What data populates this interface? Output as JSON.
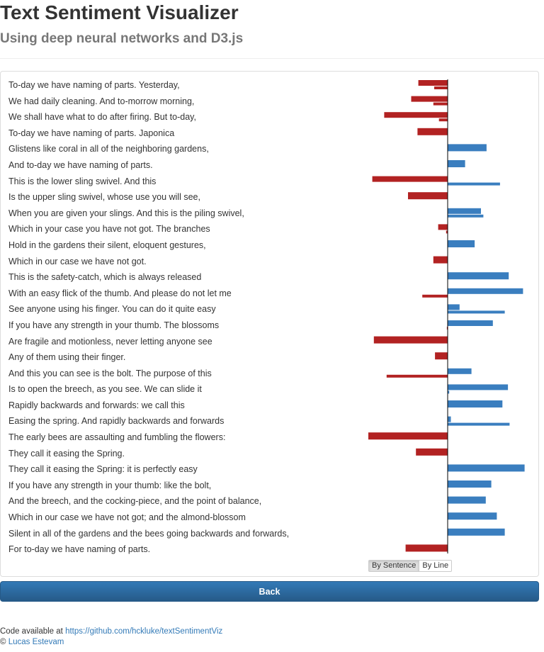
{
  "header": {
    "title": "Text Sentiment Visualizer",
    "subtitle": "Using deep neural networks and D3.js"
  },
  "chart_data": {
    "type": "bar",
    "orientation": "horizontal",
    "title": "",
    "xlabel": "",
    "ylabel": "",
    "xlim": [
      -1,
      1
    ],
    "grid": false,
    "colors": {
      "positive": "#3a7ebf",
      "negative": "#b22222",
      "axis": "#000000"
    },
    "lines": [
      {
        "text": "To-day we have naming of parts. Yesterday,",
        "bars": [
          -0.37,
          -0.17
        ]
      },
      {
        "text": "We had daily cleaning. And to-morrow morning,",
        "bars": [
          -0.46,
          -0.18
        ]
      },
      {
        "text": "We shall have what to do after firing. But to-day,",
        "bars": [
          -0.8,
          -0.11
        ]
      },
      {
        "text": "To-day we have naming of parts. Japonica",
        "bars": [
          -0.38
        ]
      },
      {
        "text": "Glistens like coral in all of the neighboring gardens,",
        "bars": [
          0.49
        ]
      },
      {
        "text": "And to-day we have naming of parts.",
        "bars": [
          0.22
        ]
      },
      {
        "text": "This is the lower sling swivel. And this",
        "bars": [
          -0.95,
          0.66
        ]
      },
      {
        "text": "Is the upper sling swivel, whose use you will see,",
        "bars": [
          -0.5
        ]
      },
      {
        "text": "When you are given your slings. And this is the piling swivel,",
        "bars": [
          0.42,
          0.45
        ]
      },
      {
        "text": "Which in your case you have not got. The branches",
        "bars": [
          -0.12,
          -0.02
        ]
      },
      {
        "text": "Hold in the gardens their silent, eloquent gestures,",
        "bars": [
          0.34
        ]
      },
      {
        "text": "Which in our case we have not got.",
        "bars": [
          -0.18
        ]
      },
      {
        "text": "This is the safety-catch, which is always released",
        "bars": [
          0.77
        ]
      },
      {
        "text": "With an easy flick of the thumb. And please do not let me",
        "bars": [
          0.95,
          -0.32
        ]
      },
      {
        "text": "See anyone using his finger. You can do it quite easy",
        "bars": [
          0.15,
          0.72
        ]
      },
      {
        "text": "If you have any strength in your thumb. The blossoms",
        "bars": [
          0.57,
          -0.01
        ]
      },
      {
        "text": "Are fragile and motionless, never letting anyone see",
        "bars": [
          -0.93
        ]
      },
      {
        "text": "Any of them using their finger.",
        "bars": [
          -0.16
        ]
      },
      {
        "text": "And this you can see is the bolt. The purpose of this",
        "bars": [
          0.3,
          -0.77
        ]
      },
      {
        "text": "Is to open the breech, as you see. We can slide it",
        "bars": [
          0.76,
          0.02
        ]
      },
      {
        "text": "Rapidly backwards and forwards: we call this",
        "bars": [
          0.69
        ]
      },
      {
        "text": "Easing the spring. And rapidly backwards and forwards",
        "bars": [
          0.04,
          0.78
        ]
      },
      {
        "text": "The early bees are assaulting and fumbling the flowers:",
        "bars": [
          -1.0
        ]
      },
      {
        "text": "They call it easing the Spring.",
        "bars": [
          -0.4
        ]
      },
      {
        "text": "They call it easing the Spring: it is perfectly easy",
        "bars": [
          0.97
        ]
      },
      {
        "text": "If you have any strength in your thumb: like the bolt,",
        "bars": [
          0.55
        ]
      },
      {
        "text": "And the breech, and the cocking-piece, and the point of balance,",
        "bars": [
          0.48
        ]
      },
      {
        "text": "Which in our case we have not got; and the almond-blossom",
        "bars": [
          0.62
        ]
      },
      {
        "text": "Silent in all of the gardens and the bees going backwards and forwards,",
        "bars": [
          0.72
        ]
      },
      {
        "text": "For to-day we have naming of parts.",
        "bars": [
          -0.53
        ]
      }
    ]
  },
  "toggle": {
    "by_sentence": "By Sentence",
    "by_line": "By Line",
    "active": "by_sentence"
  },
  "back_button": {
    "label": "Back"
  },
  "footer": {
    "code_prefix": "Code available at ",
    "code_link": "https://github.com/hckluke/textSentimentViz",
    "copyright_symbol": "©",
    "author": "Lucas Estevam"
  }
}
